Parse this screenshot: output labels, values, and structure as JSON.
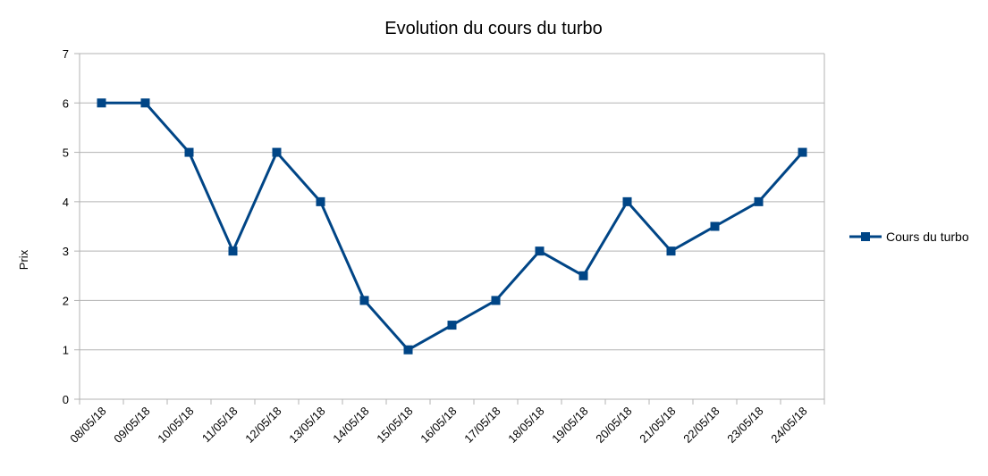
{
  "chart_data": {
    "type": "line",
    "title": "Evolution du cours du turbo",
    "xlabel": "",
    "ylabel": "Prix",
    "categories": [
      "08/05/18",
      "09/05/18",
      "10/05/18",
      "11/05/18",
      "12/05/18",
      "13/05/18",
      "14/05/18",
      "15/05/18",
      "16/05/18",
      "17/05/18",
      "18/05/18",
      "19/05/18",
      "20/05/18",
      "21/05/18",
      "22/05/18",
      "23/05/18",
      "24/05/18"
    ],
    "series": [
      {
        "name": "Cours du turbo",
        "color": "#004586",
        "marker": "square",
        "values": [
          6,
          6,
          5,
          3,
          5,
          4,
          2,
          1,
          1.5,
          2,
          3,
          2.5,
          4,
          3,
          3.5,
          4,
          5
        ]
      }
    ],
    "ylim": [
      0,
      7
    ],
    "yticks": [
      "0",
      "1",
      "2",
      "3",
      "4",
      "5",
      "6",
      "7"
    ],
    "grid": true,
    "legend_position": "right",
    "colors": {
      "series": "#004586",
      "grid": "#b3b3b3",
      "axis": "#b3b3b3"
    }
  }
}
